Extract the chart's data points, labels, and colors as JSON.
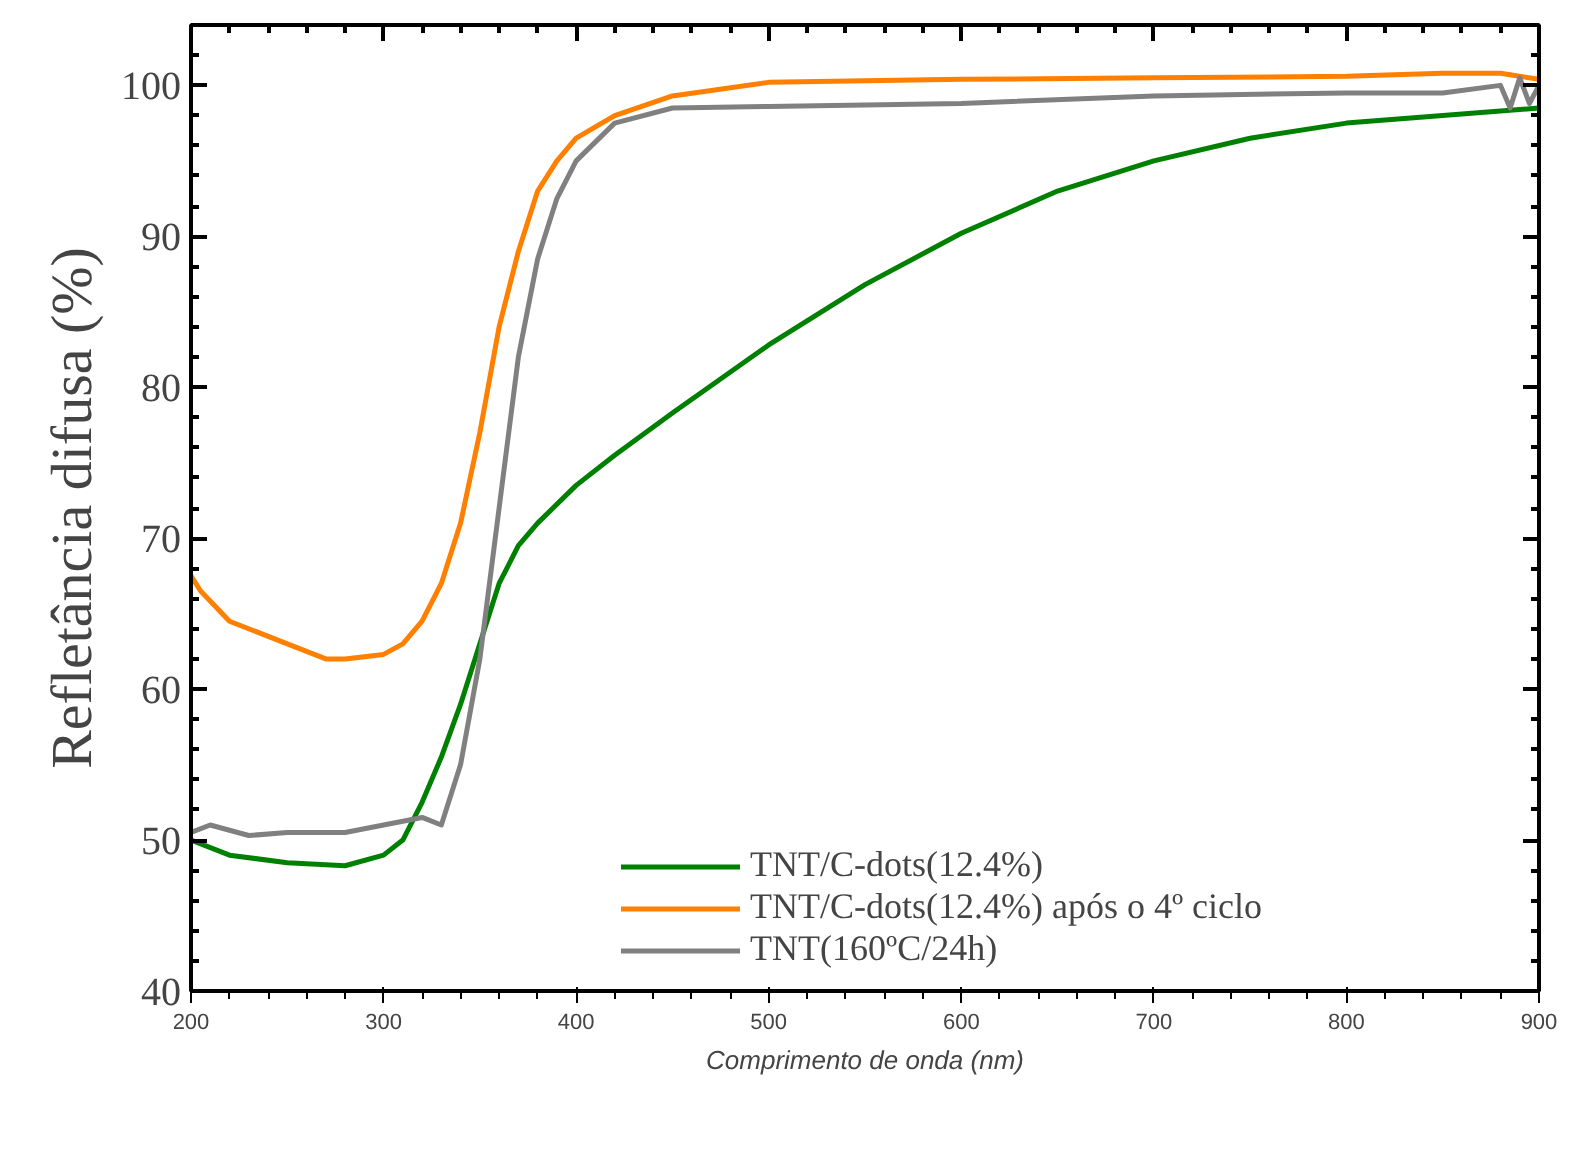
{
  "chart_data": {
    "type": "line",
    "xlabel": "Comprimento de onda (nm)",
    "ylabel": "Refletância difusa (%)",
    "xlim": [
      200,
      900
    ],
    "ylim": [
      40,
      104
    ],
    "xticks": [
      200,
      300,
      400,
      500,
      600,
      700,
      800,
      900
    ],
    "yticks": [
      40,
      50,
      60,
      70,
      80,
      90,
      100
    ],
    "grid": false,
    "legend": "bottom right",
    "marker": "none",
    "line_style": "solid",
    "series": [
      {
        "name": "TNT/C-dots(12.4%)",
        "color": "#008000",
        "x": [
          200,
          220,
          250,
          280,
          300,
          310,
          320,
          330,
          340,
          350,
          360,
          370,
          380,
          400,
          420,
          450,
          500,
          550,
          600,
          650,
          700,
          750,
          800,
          850,
          900
        ],
        "values": [
          50,
          49,
          48.5,
          48.3,
          49,
          50,
          52.5,
          55.5,
          59,
          63,
          67,
          69.5,
          71,
          73.5,
          75.5,
          78.3,
          82.8,
          86.8,
          90.2,
          93,
          95,
          96.5,
          97.5,
          98,
          98.5
        ]
      },
      {
        "name": "TNT/C-dots(12.4%) após o 4º ciclo",
        "color": "#ff7f00",
        "x": [
          200,
          205,
          220,
          250,
          270,
          280,
          300,
          310,
          320,
          330,
          340,
          350,
          360,
          370,
          380,
          390,
          400,
          420,
          450,
          500,
          600,
          700,
          800,
          850,
          880,
          900
        ],
        "values": [
          67.5,
          66.5,
          64.5,
          63,
          62,
          62,
          62.3,
          63,
          64.5,
          67,
          71,
          77,
          84,
          89,
          93,
          95,
          96.5,
          98,
          99.3,
          100.2,
          100.4,
          100.5,
          100.6,
          100.8,
          100.8,
          100.4
        ]
      },
      {
        "name": "TNT(160ºC/24h)",
        "color": "#808080",
        "x": [
          200,
          210,
          230,
          250,
          280,
          300,
          320,
          330,
          340,
          350,
          360,
          370,
          380,
          390,
          400,
          420,
          450,
          500,
          600,
          700,
          800,
          850,
          880,
          885,
          890,
          895,
          900
        ],
        "values": [
          50.5,
          51,
          50.3,
          50.5,
          50.5,
          51,
          51.5,
          51,
          55,
          62,
          72,
          82,
          88.5,
          92.5,
          95,
          97.5,
          98.5,
          98.6,
          98.8,
          99.3,
          99.5,
          99.5,
          100,
          98.5,
          100.5,
          98.8,
          100
        ]
      }
    ]
  }
}
